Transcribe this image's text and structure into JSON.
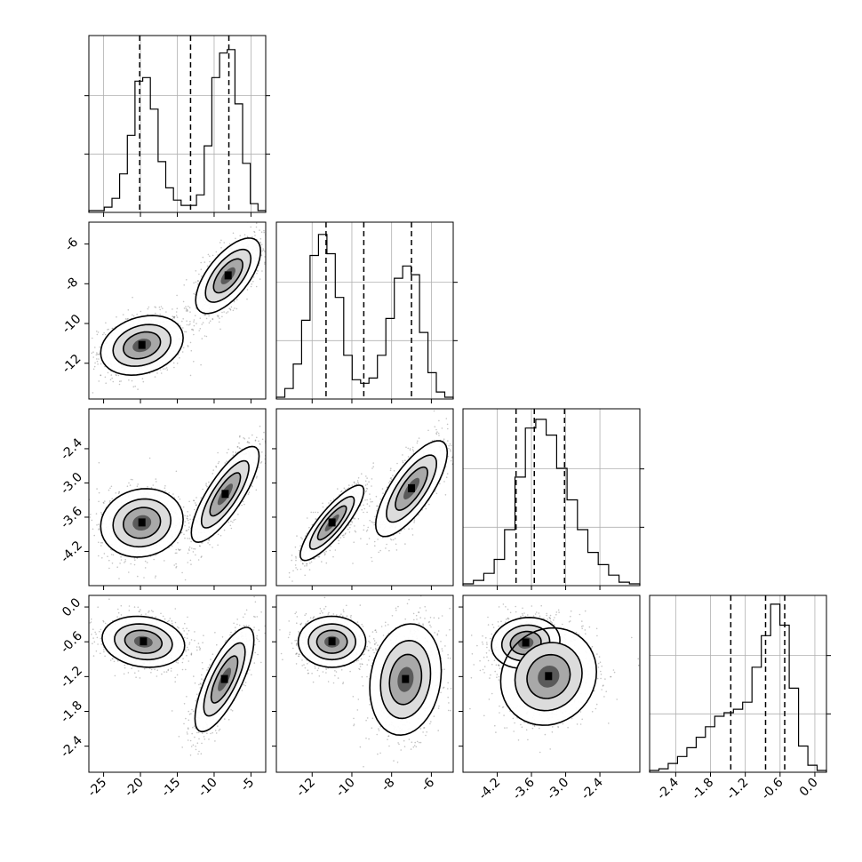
{
  "chart_data": {
    "type": "corner",
    "title": "",
    "dims": 4,
    "grid": true,
    "colors": {
      "hist": "#000000",
      "points": "#555555",
      "grid": "#b0b0b0",
      "contour": "#000000",
      "axes": "#000000"
    },
    "ranges": [
      [
        -27,
        -3
      ],
      [
        -13.8,
        -4.9
      ],
      [
        -4.8,
        -1.7
      ],
      [
        -2.85,
        0.2
      ]
    ],
    "ticks": [
      [
        "-25",
        "-20",
        "-15",
        "-10",
        "-5"
      ],
      [
        "-12",
        "-10",
        "-8",
        "-6"
      ],
      [
        "-4.2",
        "-3.6",
        "-3.0",
        "-2.4"
      ],
      [
        "-2.4",
        "-1.8",
        "-1.2",
        "-0.6",
        "0.0"
      ]
    ],
    "quantiles": [
      [
        -20.1,
        -13.2,
        -8.0
      ],
      [
        -11.3,
        -9.4,
        -7.0
      ],
      [
        -3.87,
        -3.55,
        -3.02
      ],
      [
        -1.45,
        -0.85,
        -0.52
      ]
    ],
    "hist_heights": [
      [
        0.01,
        0.01,
        0.03,
        0.08,
        0.22,
        0.44,
        0.75,
        0.77,
        0.59,
        0.29,
        0.14,
        0.07,
        0.04,
        0.04,
        0.1,
        0.38,
        0.77,
        0.91,
        0.93,
        0.62,
        0.28,
        0.05,
        0.01
      ],
      [
        0.01,
        0.06,
        0.2,
        0.45,
        0.82,
        0.94,
        0.83,
        0.58,
        0.25,
        0.11,
        0.09,
        0.12,
        0.25,
        0.46,
        0.69,
        0.76,
        0.71,
        0.38,
        0.15,
        0.04,
        0.01
      ],
      [
        0.01,
        0.03,
        0.07,
        0.15,
        0.32,
        0.62,
        0.9,
        0.95,
        0.86,
        0.67,
        0.49,
        0.32,
        0.19,
        0.12,
        0.06,
        0.02,
        0.01
      ],
      [
        0.01,
        0.02,
        0.05,
        0.09,
        0.14,
        0.2,
        0.26,
        0.32,
        0.34,
        0.36,
        0.4,
        0.6,
        0.78,
        0.96,
        0.84,
        0.48,
        0.15,
        0.04,
        0.01
      ]
    ],
    "scatter_panels": [
      {
        "x": 0,
        "y": 1,
        "modes": [
          {
            "cx": -19.8,
            "cy": -11.1,
            "sx": 2.8,
            "sy": 0.75,
            "rho": 0.25,
            "w": 1
          },
          {
            "cx": -8.1,
            "cy": -7.6,
            "sx": 2.2,
            "sy": 0.95,
            "rho": 0.65,
            "w": 1
          }
        ]
      },
      {
        "x": 0,
        "y": 2,
        "modes": [
          {
            "cx": -19.8,
            "cy": -3.7,
            "sx": 2.8,
            "sy": 0.3,
            "rho": 0.1,
            "w": 1
          },
          {
            "cx": -8.5,
            "cy": -3.2,
            "sx": 2.3,
            "sy": 0.42,
            "rho": 0.8,
            "w": 1
          }
        ]
      },
      {
        "x": 1,
        "y": 2,
        "modes": [
          {
            "cx": -11.0,
            "cy": -3.7,
            "sx": 0.8,
            "sy": 0.33,
            "rho": 0.85,
            "w": 1
          },
          {
            "cx": -7.0,
            "cy": -3.1,
            "sx": 0.9,
            "sy": 0.42,
            "rho": 0.75,
            "w": 1
          }
        ]
      },
      {
        "x": 0,
        "y": 3,
        "modes": [
          {
            "cx": -19.6,
            "cy": -0.6,
            "sx": 2.8,
            "sy": 0.22,
            "rho": -0.15,
            "w": 1
          },
          {
            "cx": -8.6,
            "cy": -1.25,
            "sx": 2.0,
            "sy": 0.45,
            "rho": 0.75,
            "w": 1
          }
        ]
      },
      {
        "x": 1,
        "y": 3,
        "modes": [
          {
            "cx": -11.0,
            "cy": -0.6,
            "sx": 0.85,
            "sy": 0.22,
            "rho": 0.0,
            "w": 1
          },
          {
            "cx": -7.3,
            "cy": -1.25,
            "sx": 0.9,
            "sy": 0.48,
            "rho": 0.15,
            "w": 1
          }
        ]
      },
      {
        "x": 2,
        "y": 3,
        "modes": [
          {
            "cx": -3.7,
            "cy": -0.62,
            "sx": 0.3,
            "sy": 0.22,
            "rho": 0.1,
            "w": 1
          },
          {
            "cx": -3.3,
            "cy": -1.2,
            "sx": 0.42,
            "sy": 0.42,
            "rho": 0.1,
            "w": 1
          }
        ]
      }
    ]
  }
}
